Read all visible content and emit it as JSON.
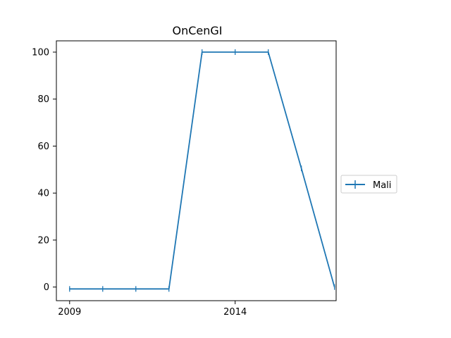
{
  "chart_data": {
    "type": "line",
    "title": "OnCenGI",
    "xlabel": "",
    "ylabel": "",
    "x": [
      2009,
      2010,
      2011,
      2012,
      2013,
      2014,
      2015,
      2016,
      2017
    ],
    "xlim": [
      2008.6,
      2017.05
    ],
    "ylim": [
      -5.8,
      104.8
    ],
    "xticks": [
      2009,
      2014
    ],
    "yticks": [
      0,
      20,
      40,
      60,
      80,
      100
    ],
    "series": [
      {
        "name": "Mali",
        "color": "#1f77b4",
        "marker": "vertical-line",
        "values": [
          -0.8,
          -0.8,
          -0.8,
          -0.8,
          100,
          100,
          100,
          50.5,
          0
        ]
      }
    ],
    "legend": {
      "placement": "right",
      "entries": [
        "Mali"
      ]
    },
    "grid": false
  }
}
